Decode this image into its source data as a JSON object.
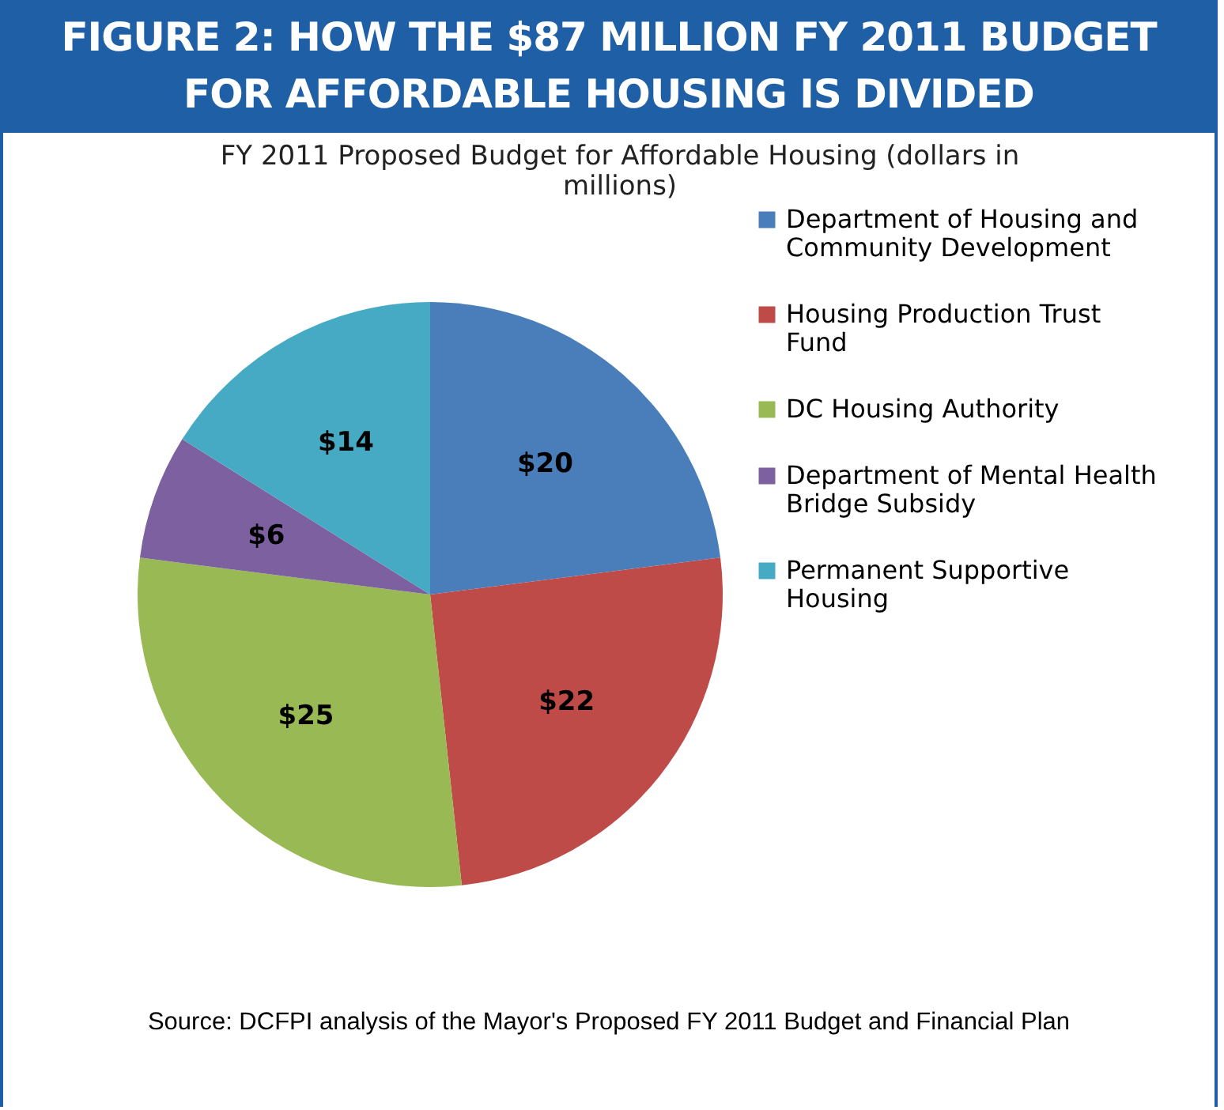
{
  "chart_data": {
    "type": "pie",
    "title": "FIGURE 2: HOW THE $87 MILLION FY 2011 BUDGET FOR AFFORDABLE HOUSING IS DIVIDED",
    "subtitle": "FY 2011 Proposed Budget for Affordable Housing (dollars in millions)",
    "categories": [
      "Department of Housing and Community Development",
      "Housing Production Trust Fund",
      "DC Housing Authority",
      "Department of Mental Health Bridge Subsidy",
      "Permanent Supportive Housing"
    ],
    "values": [
      20,
      22,
      25,
      6,
      14
    ],
    "value_labels": [
      "$20",
      "$22",
      "$25",
      "$6",
      "$14"
    ],
    "colors": [
      "#4a7ebb",
      "#be4b48",
      "#98b954",
      "#7d60a0",
      "#46aac5"
    ],
    "legend": "right",
    "annotations": [
      "Source: DCFPI analysis of the Mayor's Proposed FY 2011 Budget and Financial Plan"
    ]
  }
}
